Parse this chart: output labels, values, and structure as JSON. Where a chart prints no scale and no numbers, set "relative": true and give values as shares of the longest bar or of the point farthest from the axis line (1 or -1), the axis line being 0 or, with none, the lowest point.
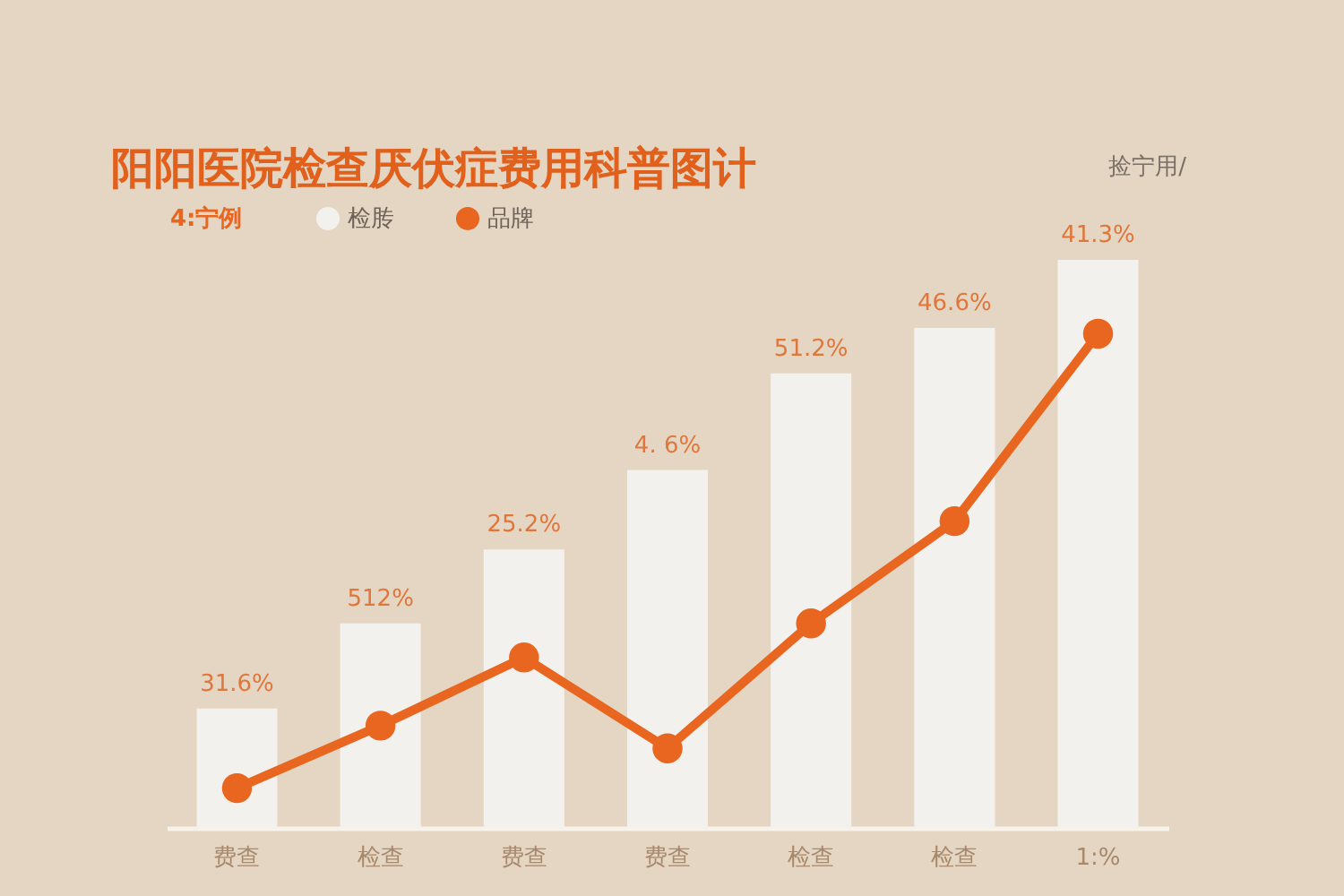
{
  "chart_data": {
    "type": "bar",
    "title": "阳阳医院检查厌伏症费用科普图计",
    "legend_title": "4:宁例",
    "legend": "top left",
    "relative": true,
    "marker": "circle",
    "line_style": "solid",
    "annotations": [
      "捡宁用/",
      "31.6%",
      "512%",
      "25.2%",
      "4. 6%",
      "51.2%",
      "46.6%",
      "41.3%"
    ],
    "categories": [
      "费查",
      "检查",
      "费查",
      "费查",
      "检查",
      "检查",
      "1:%"
    ],
    "series": [
      {
        "name": "检䏝",
        "color": "#f3f1ee",
        "values": [
          0.21,
          0.36,
          0.49,
          0.63,
          0.8,
          0.88,
          1
        ]
      },
      {
        "name": "品牌",
        "type": "line",
        "color": "#e8661f",
        "values": [
          0.07,
          0.18,
          0.3,
          0.14,
          0.36,
          0.54,
          0.87
        ]
      }
    ]
  }
}
